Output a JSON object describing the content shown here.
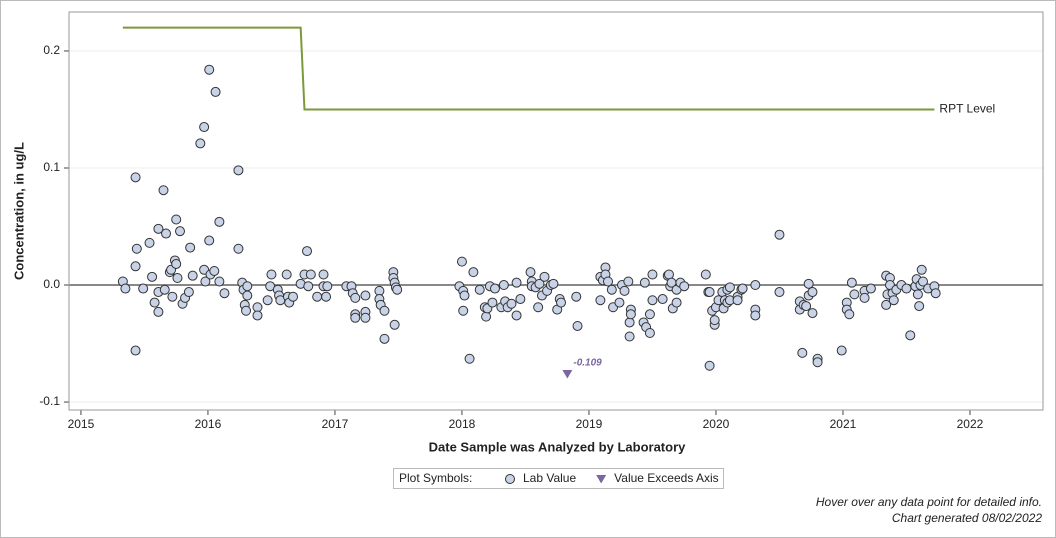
{
  "chart_data": {
    "type": "scatter",
    "x_label": "Date Sample was Analyzed by Laboratory",
    "y_label": "Concentration, in ug/L",
    "xlim": [
      2014.906,
      2022.575
    ],
    "ylim": [
      -0.1068,
      0.2333
    ],
    "xticks": [
      2015,
      2016,
      2017,
      2018,
      2019,
      2020,
      2021,
      2022
    ],
    "yticks": [
      -0.1,
      {
        "value": 0,
        "label": "0.0"
      },
      0.1,
      0.2
    ],
    "grid": true,
    "reference_line": 0,
    "legend_title": "Plot Symbols:",
    "footnotes": [
      "Hover over any data point for detailed info.",
      "Chart generated 08/02/2022"
    ],
    "series": [
      {
        "name": "Lab Value",
        "mark": "circle",
        "color": "#c9d3e8",
        "x": [
          2015.33,
          2015.35,
          2015.43,
          2015.43,
          2015.44,
          2015.43,
          2015.49,
          2015.54,
          2015.56,
          2015.58,
          2015.61,
          2015.61,
          2015.61,
          2015.65,
          2015.66,
          2015.67,
          2015.7,
          2015.71,
          2015.72,
          2015.74,
          2015.75,
          2015.75,
          2015.76,
          2015.78,
          2015.8,
          2015.82,
          2015.85,
          2015.86,
          2015.88,
          2015.94,
          2015.97,
          2015.97,
          2015.98,
          2016.01,
          2016.01,
          2016.02,
          2016.05,
          2016.06,
          2016.09,
          2016.09,
          2016.13,
          2016.24,
          2016.24,
          2016.27,
          2016.28,
          2016.29,
          2016.3,
          2016.31,
          2016.31,
          2016.39,
          2016.39,
          2016.47,
          2016.49,
          2016.5,
          2016.55,
          2016.56,
          2016.57,
          2016.62,
          2016.63,
          2016.64,
          2016.67,
          2016.73,
          2016.76,
          2016.78,
          2016.79,
          2016.81,
          2016.86,
          2016.91,
          2016.91,
          2016.93,
          2016.94,
          2017.09,
          2017.13,
          2017.14,
          2017.16,
          2017.16,
          2017.16,
          2017.24,
          2017.24,
          2017.24,
          2017.35,
          2017.35,
          2017.36,
          2017.39,
          2017.39,
          2017.46,
          2017.46,
          2017.47,
          2017.47,
          2017.48,
          2017.49,
          2017.98,
          2018.0,
          2018.01,
          2018.01,
          2018.02,
          2018.06,
          2018.09,
          2018.14,
          2018.18,
          2018.19,
          2018.2,
          2018.22,
          2018.24,
          2018.26,
          2018.31,
          2018.33,
          2018.34,
          2018.36,
          2018.39,
          2018.43,
          2018.43,
          2018.46,
          2018.54,
          2018.55,
          2018.55,
          2018.58,
          2018.6,
          2018.61,
          2018.63,
          2018.65,
          2018.67,
          2018.7,
          2018.72,
          2018.75,
          2018.77,
          2018.78,
          2018.9,
          2018.91,
          2019.09,
          2019.09,
          2019.11,
          2019.13,
          2019.13,
          2019.15,
          2019.18,
          2019.19,
          2019.24,
          2019.26,
          2019.28,
          2019.31,
          2019.32,
          2019.32,
          2019.33,
          2019.33,
          2019.43,
          2019.44,
          2019.45,
          2019.48,
          2019.48,
          2019.5,
          2019.5,
          2019.58,
          2019.62,
          2019.63,
          2019.64,
          2019.65,
          2019.66,
          2019.69,
          2019.69,
          2019.72,
          2019.75,
          2019.92,
          2019.94,
          2019.95,
          2019.95,
          2019.97,
          2019.99,
          2019.99,
          2020.0,
          2020.02,
          2020.05,
          2020.06,
          2020.07,
          2020.09,
          2020.09,
          2020.11,
          2020.11,
          2020.17,
          2020.17,
          2020.2,
          2020.21,
          2020.31,
          2020.31,
          2020.31,
          2020.5,
          2020.5,
          2020.66,
          2020.66,
          2020.68,
          2020.69,
          2020.71,
          2020.73,
          2020.73,
          2020.76,
          2020.76,
          2020.8,
          2020.8,
          2020.99,
          2021.03,
          2021.03,
          2021.05,
          2021.07,
          2021.09,
          2021.17,
          2021.17,
          2021.22,
          2021.34,
          2021.34,
          2021.35,
          2021.37,
          2021.37,
          2021.39,
          2021.4,
          2021.42,
          2021.46,
          2021.5,
          2021.53,
          2021.57,
          2021.58,
          2021.59,
          2021.6,
          2021.61,
          2021.62,
          2021.63,
          2021.67,
          2021.72,
          2021.73
        ],
        "values": [
          0.003,
          -0.003,
          0.092,
          0.016,
          0.031,
          -0.056,
          -0.003,
          0.036,
          0.007,
          -0.015,
          0.048,
          -0.006,
          -0.023,
          0.081,
          -0.004,
          0.044,
          0.011,
          0.013,
          -0.01,
          0.021,
          0.056,
          0.018,
          0.006,
          0.046,
          -0.016,
          -0.011,
          -0.006,
          0.032,
          0.008,
          0.121,
          0.135,
          0.013,
          0.003,
          0.184,
          0.038,
          0.009,
          0.012,
          0.165,
          0.054,
          0.003,
          -0.007,
          0.098,
          0.031,
          0.002,
          -0.004,
          -0.017,
          -0.022,
          -0.009,
          -0.001,
          -0.019,
          -0.026,
          -0.013,
          -0.001,
          0.009,
          -0.004,
          -0.009,
          -0.013,
          0.009,
          -0.01,
          -0.015,
          -0.01,
          0.001,
          0.009,
          0.029,
          -0.001,
          0.009,
          -0.01,
          0.009,
          -0.001,
          -0.01,
          -0.001,
          -0.001,
          -0.001,
          -0.007,
          -0.011,
          -0.025,
          -0.028,
          -0.009,
          -0.023,
          -0.028,
          -0.005,
          -0.012,
          -0.017,
          -0.022,
          -0.046,
          0.011,
          0.006,
          0.002,
          -0.034,
          -0.002,
          -0.004,
          -0.001,
          0.02,
          -0.005,
          -0.022,
          -0.009,
          -0.063,
          0.011,
          -0.004,
          -0.019,
          -0.027,
          -0.02,
          -0.001,
          -0.015,
          -0.003,
          -0.019,
          0.0,
          -0.014,
          -0.019,
          -0.016,
          -0.026,
          0.002,
          -0.012,
          0.011,
          0.003,
          -0.001,
          -0.002,
          -0.019,
          0.001,
          -0.009,
          0.007,
          -0.005,
          0.0,
          0.001,
          -0.021,
          -0.012,
          -0.015,
          -0.01,
          -0.035,
          0.007,
          -0.013,
          0.004,
          0.015,
          0.009,
          0.003,
          -0.004,
          -0.019,
          -0.015,
          0.0,
          -0.005,
          0.003,
          -0.032,
          -0.044,
          -0.021,
          -0.025,
          -0.032,
          0.002,
          -0.036,
          -0.025,
          -0.041,
          0.009,
          -0.013,
          -0.012,
          0.008,
          0.009,
          -0.001,
          0.002,
          -0.02,
          -0.015,
          -0.004,
          0.002,
          -0.001,
          0.009,
          -0.006,
          -0.069,
          -0.006,
          -0.022,
          -0.034,
          -0.03,
          -0.019,
          -0.013,
          -0.006,
          -0.02,
          -0.013,
          -0.015,
          -0.004,
          -0.002,
          -0.013,
          -0.01,
          -0.013,
          -0.004,
          -0.003,
          0.0,
          -0.021,
          -0.026,
          0.043,
          -0.006,
          -0.014,
          -0.021,
          -0.058,
          -0.017,
          -0.018,
          0.001,
          -0.009,
          -0.006,
          -0.024,
          -0.063,
          -0.066,
          -0.056,
          -0.015,
          -0.021,
          -0.025,
          0.002,
          -0.008,
          -0.005,
          -0.011,
          -0.003,
          0.008,
          -0.017,
          -0.008,
          0.006,
          0.0,
          -0.007,
          -0.013,
          -0.004,
          0.0,
          -0.003,
          -0.043,
          -0.001,
          0.005,
          -0.008,
          -0.018,
          0.0,
          0.013,
          0.003,
          -0.003,
          -0.001,
          -0.007
        ]
      },
      {
        "name": "RPT Level",
        "mark": "line",
        "color": "#7a9a3a",
        "x": [
          2015.33,
          2016.73,
          2016.76,
          2021.72
        ],
        "values": [
          0.22,
          0.22,
          0.15,
          0.15
        ]
      },
      {
        "name": "Value Exceeds Axis",
        "mark": "triangle",
        "color": "#7b66a0",
        "x": [
          2018.83
        ],
        "values": [
          -0.109
        ],
        "value_labels": [
          "-0.109"
        ]
      }
    ]
  }
}
